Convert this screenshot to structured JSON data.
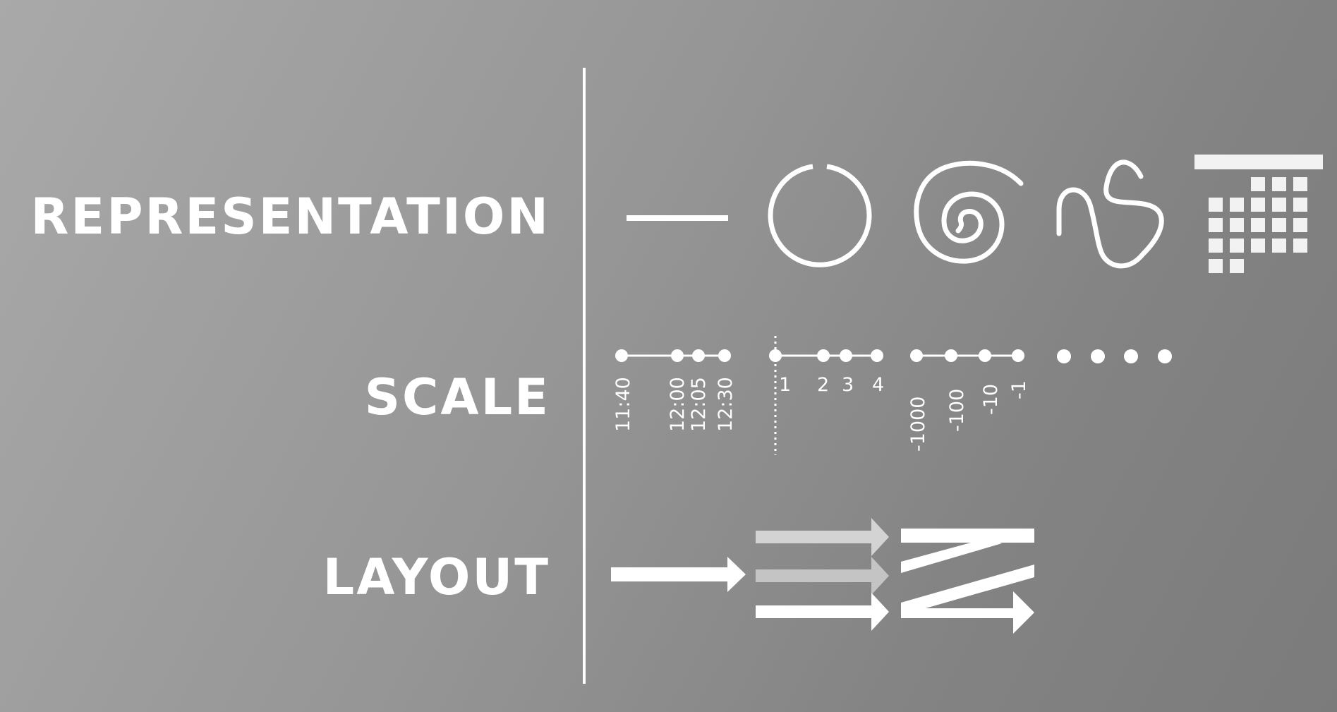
{
  "rows": {
    "representation": "REPRESENTATION",
    "scale": "SCALE",
    "layout": "LAYOUT"
  },
  "scale": {
    "time_ticks": [
      "11:40",
      "12:00",
      "12:05",
      "12:30"
    ],
    "linear_ticks": [
      "1",
      "2",
      "3",
      "4"
    ],
    "negative_ticks": [
      "-1000",
      "-100",
      "-10",
      "-1"
    ]
  },
  "representation_icons": [
    "straight-line-icon",
    "circle-icon",
    "spiral-icon",
    "meander-curve-icon",
    "calendar-grid-icon"
  ],
  "layout_icons": [
    "single-arrow-icon",
    "stacked-arrows-icon",
    "zigzag-arrow-icon"
  ],
  "colors": {
    "foreground": "#ffffff",
    "muted_arrow": "#c8c8c8",
    "background_light": "#a9a9a9",
    "background_dark": "#7b7b7b"
  }
}
